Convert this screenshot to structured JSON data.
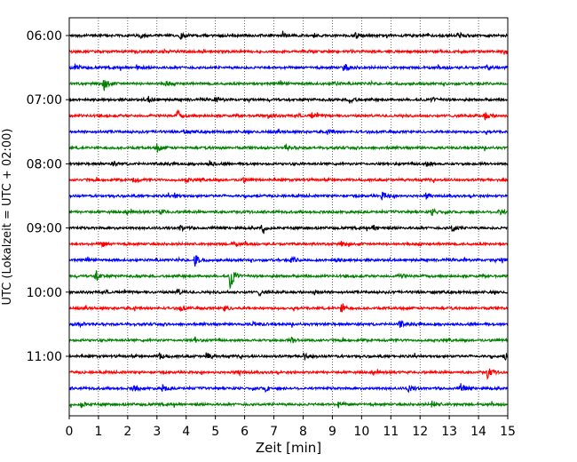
{
  "chart_data": {
    "type": "line",
    "title": "",
    "xlabel": "Zeit  [min]",
    "ylabel": "UTC (Lokalzeit = UTC + 02:00)",
    "xlim": [
      0,
      15
    ],
    "xticks": [
      0,
      1,
      2,
      3,
      4,
      5,
      6,
      7,
      8,
      9,
      10,
      11,
      12,
      13,
      14,
      15
    ],
    "x_tick_labels": [
      "0",
      "1",
      "2",
      "3",
      "4",
      "5",
      "6",
      "7",
      "8",
      "9",
      "10",
      "11",
      "12",
      "13",
      "14",
      "15"
    ],
    "y_tick_labels": [
      "06:00",
      "07:00",
      "08:00",
      "09:00",
      "10:00",
      "11:00"
    ],
    "trace_interval_minutes": 15,
    "grid": "vertical dotted at each minute",
    "legend": "none",
    "color_cycle": [
      "#000000",
      "#ff0000",
      "#0000ff",
      "#008000"
    ],
    "series": [
      {
        "start": "06:00",
        "color": "#000000",
        "events": [
          [
            2.4,
            0.25
          ],
          [
            3.8,
            0.35
          ],
          [
            7.3,
            0.4
          ],
          [
            9.8,
            0.3
          ],
          [
            13.3,
            0.35
          ]
        ]
      },
      {
        "start": "06:15",
        "color": "#ff0000",
        "events": [
          [
            3.2,
            0.3
          ],
          [
            8.2,
            0.25
          ],
          [
            14.9,
            0.4
          ]
        ]
      },
      {
        "start": "06:30",
        "color": "#0000ff",
        "events": [
          [
            0.2,
            0.3
          ],
          [
            2.3,
            0.25
          ],
          [
            9.4,
            0.5
          ],
          [
            14.3,
            0.35
          ]
        ]
      },
      {
        "start": "06:45",
        "color": "#008000",
        "events": [
          [
            1.2,
            0.8
          ],
          [
            3.3,
            0.25
          ],
          [
            9.0,
            0.25
          ]
        ]
      },
      {
        "start": "07:00",
        "color": "#000000",
        "events": [
          [
            2.7,
            0.35
          ],
          [
            5.0,
            0.3
          ],
          [
            9.6,
            0.45
          ],
          [
            12.4,
            0.3
          ]
        ]
      },
      {
        "start": "07:15",
        "color": "#ff0000",
        "events": [
          [
            3.7,
            0.55
          ],
          [
            6.8,
            0.3
          ],
          [
            8.3,
            0.3
          ],
          [
            14.2,
            0.5
          ]
        ]
      },
      {
        "start": "07:30",
        "color": "#0000ff",
        "events": [
          [
            3.9,
            0.25
          ],
          [
            8.9,
            0.3
          ]
        ]
      },
      {
        "start": "07:45",
        "color": "#008000",
        "events": [
          [
            3.0,
            0.45
          ],
          [
            7.4,
            0.3
          ]
        ]
      },
      {
        "start": "08:00",
        "color": "#000000",
        "events": [
          [
            1.5,
            0.3
          ],
          [
            4.8,
            0.25
          ],
          [
            12.2,
            0.3
          ]
        ]
      },
      {
        "start": "08:15",
        "color": "#ff0000",
        "events": [
          [
            2.2,
            0.35
          ],
          [
            4.0,
            0.3
          ],
          [
            5.9,
            0.3
          ]
        ]
      },
      {
        "start": "08:30",
        "color": "#0000ff",
        "events": [
          [
            3.6,
            0.25
          ],
          [
            10.7,
            0.5
          ],
          [
            12.2,
            0.3
          ]
        ]
      },
      {
        "start": "08:45",
        "color": "#008000",
        "events": [
          [
            3.1,
            0.25
          ],
          [
            12.4,
            0.4
          ],
          [
            14.7,
            0.45
          ]
        ]
      },
      {
        "start": "09:00",
        "color": "#000000",
        "events": [
          [
            3.8,
            0.35
          ],
          [
            6.6,
            0.45
          ],
          [
            10.4,
            0.35
          ],
          [
            13.1,
            0.5
          ]
        ]
      },
      {
        "start": "09:15",
        "color": "#ff0000",
        "events": [
          [
            1.1,
            0.3
          ],
          [
            5.6,
            0.3
          ],
          [
            9.3,
            0.25
          ]
        ]
      },
      {
        "start": "09:30",
        "color": "#0000ff",
        "events": [
          [
            4.3,
            0.7
          ],
          [
            7.6,
            0.4
          ],
          [
            9.1,
            0.3
          ],
          [
            14.8,
            0.3
          ]
        ]
      },
      {
        "start": "09:45",
        "color": "#008000",
        "events": [
          [
            0.9,
            0.6
          ],
          [
            5.5,
            1.6
          ],
          [
            11.3,
            0.3
          ]
        ]
      },
      {
        "start": "10:00",
        "color": "#000000",
        "events": [
          [
            3.7,
            0.35
          ],
          [
            6.5,
            0.3
          ],
          [
            8.4,
            0.3
          ]
        ]
      },
      {
        "start": "10:15",
        "color": "#ff0000",
        "events": [
          [
            3.8,
            0.3
          ],
          [
            5.3,
            0.35
          ],
          [
            9.3,
            0.7
          ]
        ]
      },
      {
        "start": "10:30",
        "color": "#0000ff",
        "events": [
          [
            0.3,
            0.45
          ],
          [
            6.3,
            0.3
          ],
          [
            11.3,
            0.35
          ]
        ]
      },
      {
        "start": "10:45",
        "color": "#008000",
        "events": [
          [
            4.3,
            0.3
          ],
          [
            7.6,
            0.3
          ]
        ]
      },
      {
        "start": "11:00",
        "color": "#000000",
        "events": [
          [
            3.1,
            0.45
          ],
          [
            4.7,
            0.45
          ],
          [
            8.0,
            0.55
          ],
          [
            14.9,
            0.4
          ]
        ]
      },
      {
        "start": "11:15",
        "color": "#ff0000",
        "events": [
          [
            5.8,
            0.35
          ],
          [
            14.3,
            0.6
          ]
        ]
      },
      {
        "start": "11:30",
        "color": "#0000ff",
        "events": [
          [
            2.2,
            0.45
          ],
          [
            3.2,
            0.35
          ],
          [
            6.7,
            0.35
          ],
          [
            11.6,
            0.4
          ],
          [
            13.4,
            0.5
          ]
        ]
      },
      {
        "start": "11:45",
        "color": "#008000",
        "events": [
          [
            0.4,
            0.35
          ],
          [
            9.2,
            0.35
          ],
          [
            12.4,
            0.45
          ]
        ]
      }
    ]
  }
}
